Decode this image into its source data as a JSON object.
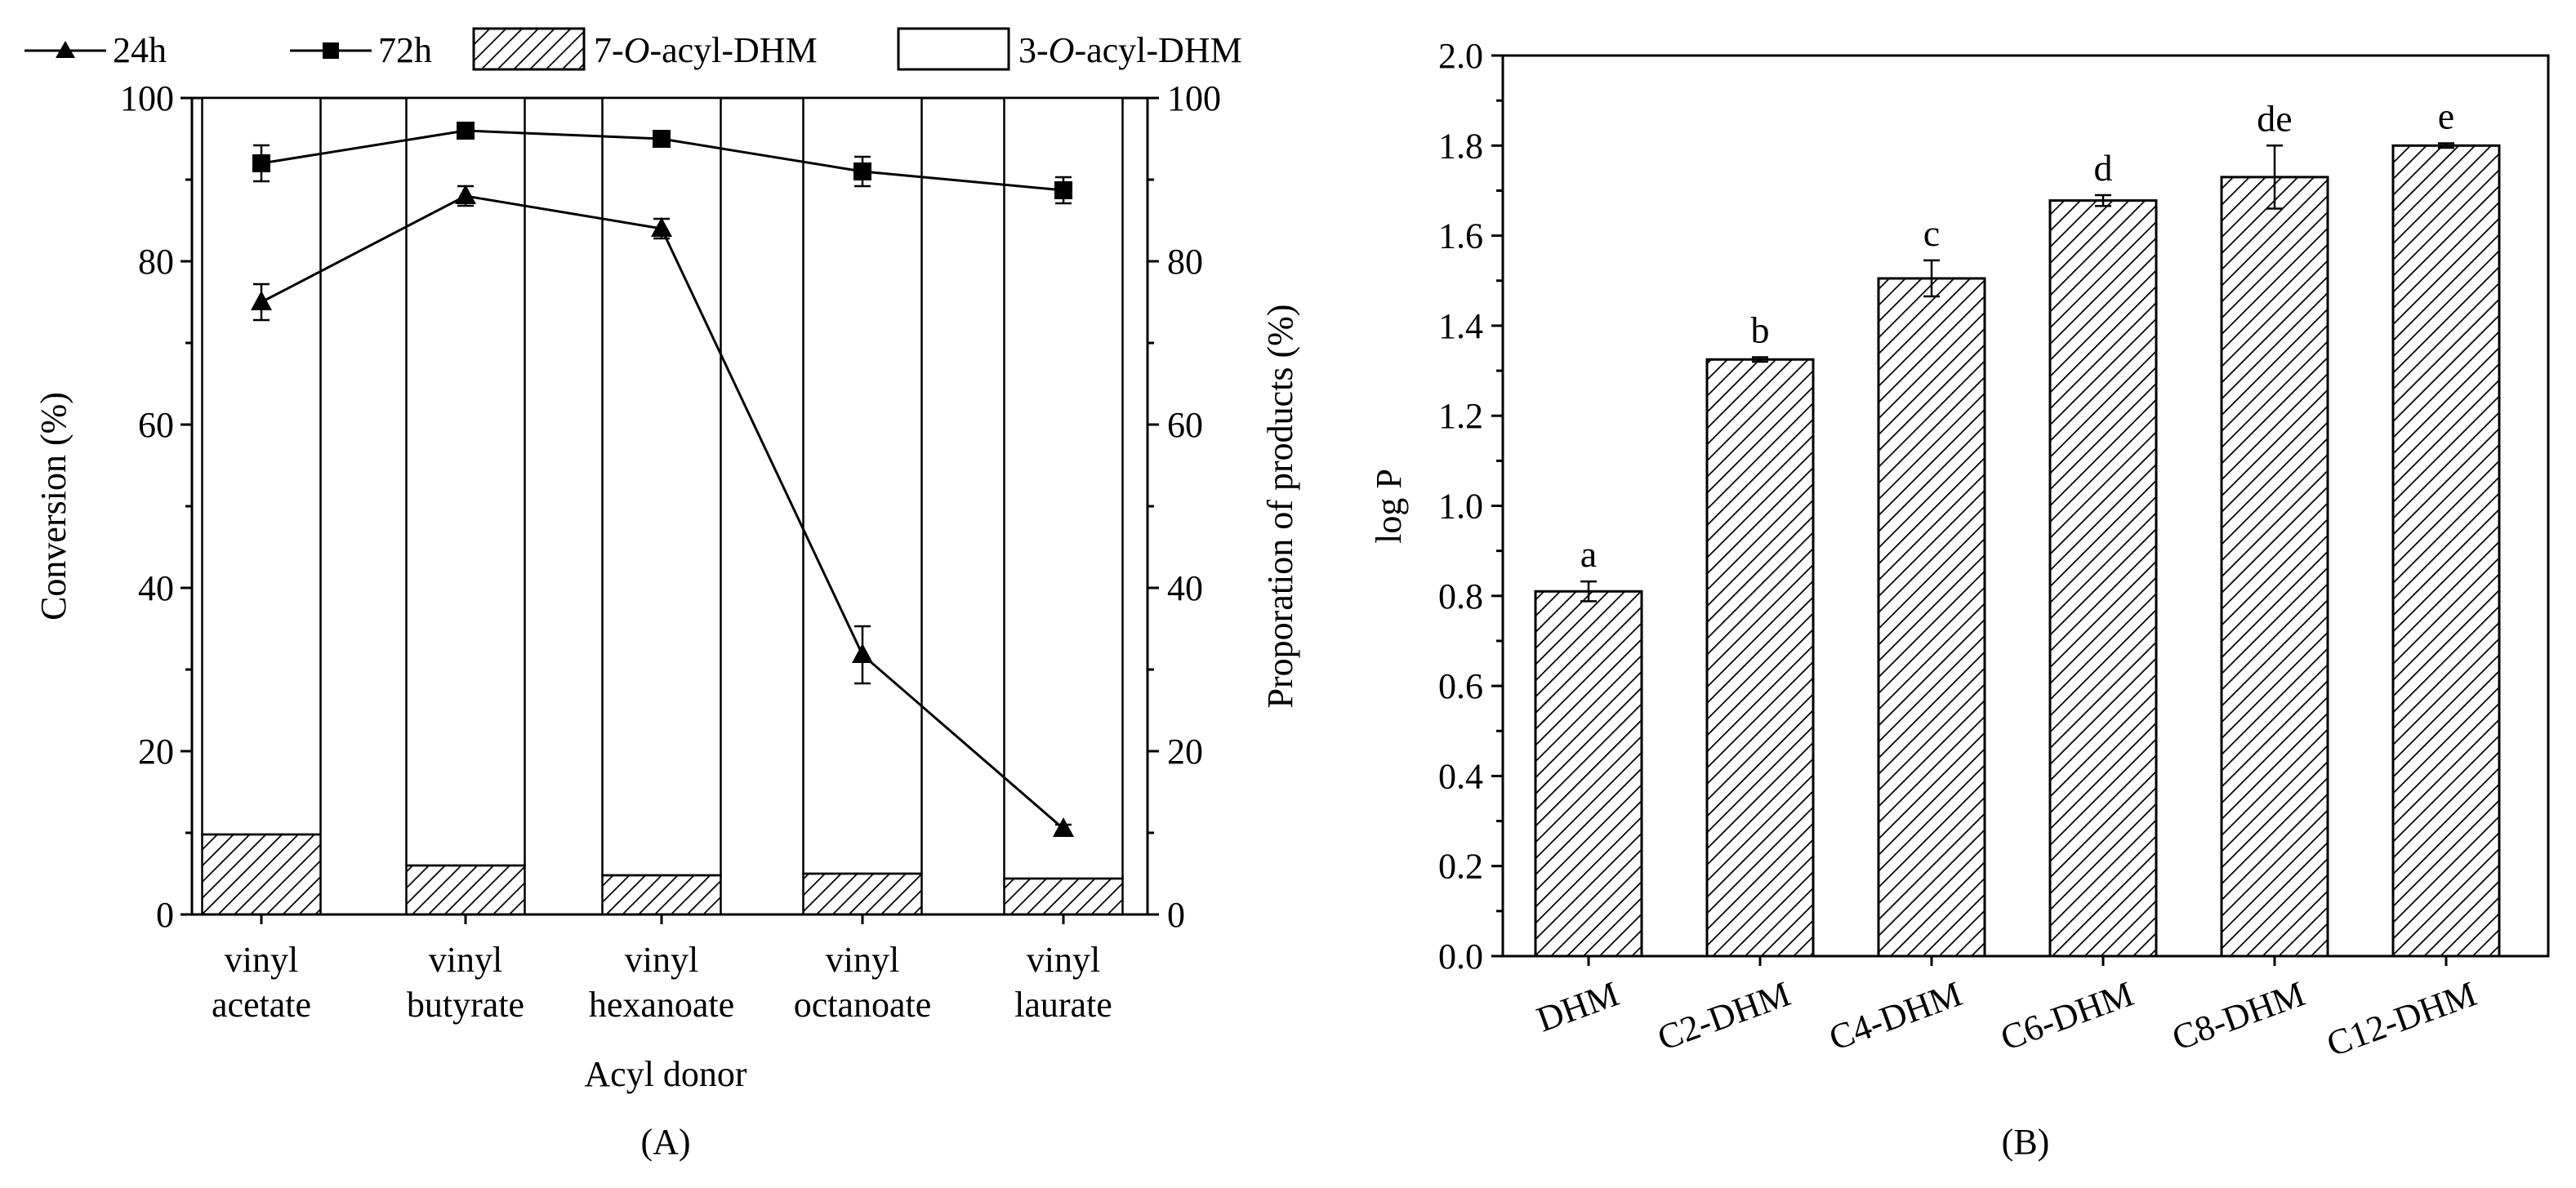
{
  "figure": {
    "panel_a_label": "(A)",
    "panel_b_label": "(B)"
  },
  "colors": {
    "axis": "#000000",
    "bar_fill": "#ffffff",
    "hatch": "#000000"
  },
  "chart_data": [
    {
      "id": "A",
      "type": "bar+line",
      "categories": [
        [
          "vinyl",
          "acetate"
        ],
        [
          "vinyl",
          "butyrate"
        ],
        [
          "vinyl",
          "hexanoate"
        ],
        [
          "vinyl",
          "octanoate"
        ],
        [
          "vinyl",
          "laurate"
        ]
      ],
      "xlabel": "Acyl donor",
      "ylabel_left": "Conversion (%)",
      "ylabel_right": "Proporation of products (%)",
      "ylim_left": [
        0,
        100
      ],
      "ylim_right": [
        0,
        100
      ],
      "yticks_left": [
        "0",
        "20",
        "40",
        "60",
        "80",
        "100"
      ],
      "yticks_right": [
        "0",
        "20",
        "40",
        "60",
        "80",
        "100"
      ],
      "legend": [
        {
          "label": "24h",
          "marker": "triangle"
        },
        {
          "label": "72h",
          "marker": "square"
        },
        {
          "label_parts": [
            "7-",
            "O",
            "-acyl-DHM"
          ],
          "style": "hatched"
        },
        {
          "label_parts": [
            "3-",
            "O",
            "-acyl-DHM"
          ],
          "style": "open"
        }
      ],
      "stacked_bars": [
        {
          "name": "7-O-acyl-DHM",
          "values": [
            9.8,
            6.0,
            4.8,
            5.0,
            4.4
          ]
        },
        {
          "name": "3-O-acyl-DHM",
          "values": [
            90.2,
            94.0,
            95.2,
            95.0,
            95.6
          ]
        }
      ],
      "series": [
        {
          "name": "24h",
          "marker": "triangle",
          "values": [
            75,
            88,
            84,
            31.8,
            10.5
          ],
          "errors": [
            2.2,
            1.2,
            1.2,
            3.5,
            0.5
          ]
        },
        {
          "name": "72h",
          "marker": "square",
          "values": [
            92,
            96,
            95,
            91,
            88.7
          ],
          "errors": [
            2.2,
            0.6,
            0.6,
            1.8,
            1.6
          ]
        }
      ]
    },
    {
      "id": "B",
      "type": "bar",
      "categories": [
        "DHM",
        "C2-DHM",
        "C4-DHM",
        "C6-DHM",
        "C8-DHM",
        "C12-DHM"
      ],
      "values": [
        0.81,
        1.325,
        1.505,
        1.678,
        1.73,
        1.8
      ],
      "errors": [
        0.022,
        0.005,
        0.04,
        0.012,
        0.07,
        0.005
      ],
      "significance_letters": [
        "a",
        "b",
        "c",
        "d",
        "de",
        "e"
      ],
      "ylabel": "log P",
      "ylim": [
        0,
        2.0
      ],
      "yticks": [
        "0.0",
        "0.2",
        "0.4",
        "0.6",
        "0.8",
        "1.0",
        "1.2",
        "1.4",
        "1.6",
        "1.8",
        "2.0"
      ]
    }
  ]
}
